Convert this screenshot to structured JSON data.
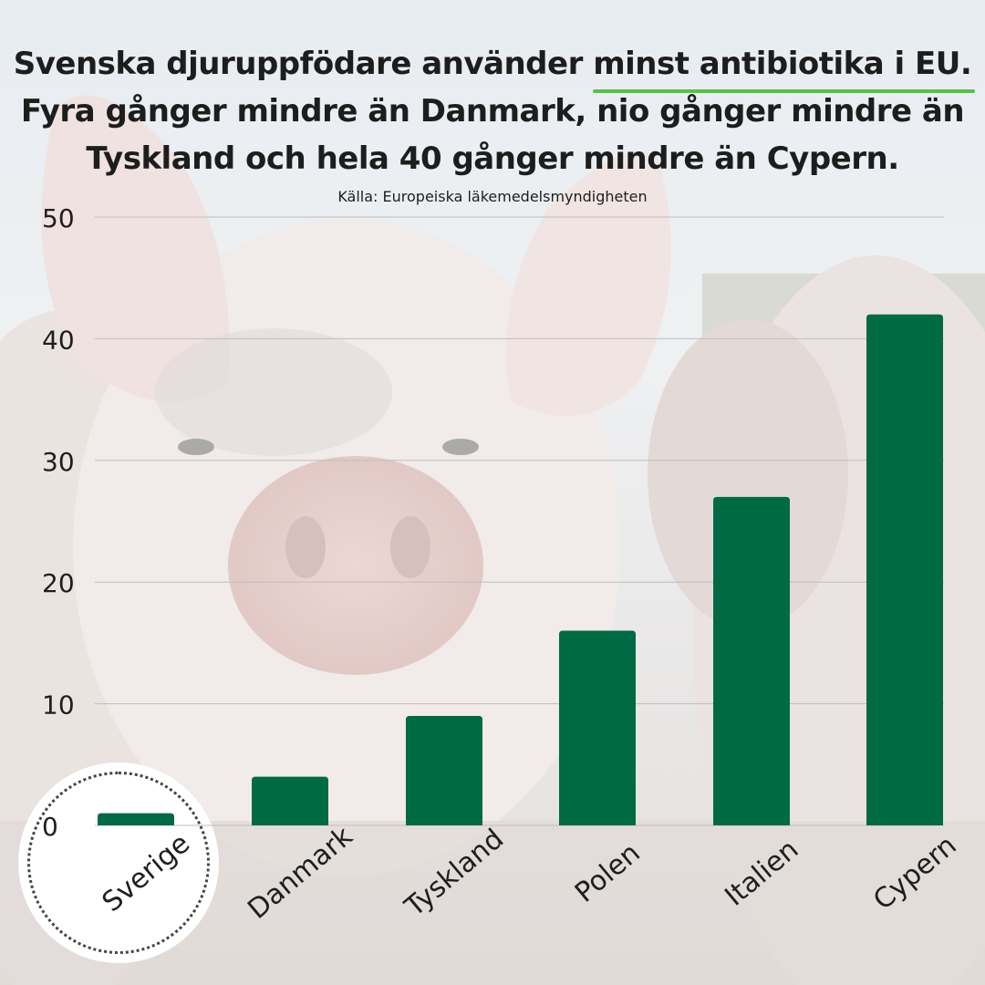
{
  "headline": {
    "line1_before": "Svenska djuruppfödare använder ",
    "line1_highlight": "minst antibiotika i EU.",
    "line2": "Fyra gånger mindre än Danmark, nio gånger mindre än",
    "line3": "Tyskland och hela 40 gånger mindre än Cypern."
  },
  "source": "Källa: Europeiska läkemedelsmyndigheten",
  "colors": {
    "bar": "#006a45",
    "highlight": "#5bbf4a",
    "grid": "#bdbdbd"
  },
  "chart_data": {
    "type": "bar",
    "title": "",
    "xlabel": "",
    "ylabel": "",
    "categories": [
      "Sverige",
      "Danmark",
      "Tyskland",
      "Polen",
      "Italien",
      "Cypern"
    ],
    "values": [
      1,
      4,
      9,
      16,
      27,
      42
    ],
    "ylim": [
      0,
      50
    ],
    "yticks": [
      0,
      10,
      20,
      30,
      40,
      50
    ],
    "grid": true,
    "legend": "none"
  }
}
